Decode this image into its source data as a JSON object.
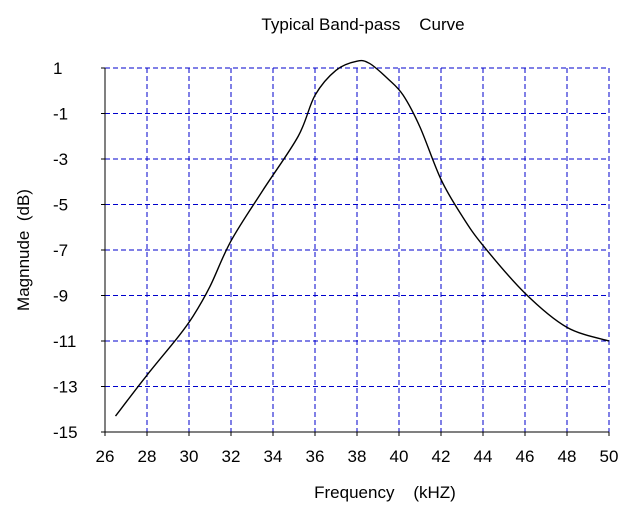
{
  "chart_data": {
    "type": "line",
    "title": "Typical Band-pass    Curve",
    "xlabel": "Frequency    (kHZ)",
    "ylabel": "Magnnude  (dB)",
    "xlim": [
      26,
      50
    ],
    "ylim": [
      -15,
      1
    ],
    "xticks": [
      26,
      28,
      30,
      32,
      34,
      36,
      38,
      40,
      42,
      44,
      46,
      48,
      50
    ],
    "yticks": [
      1,
      -1,
      -3,
      -5,
      -7,
      -9,
      -11,
      -13,
      -15
    ],
    "grid": true,
    "grid_color": "#0000cc",
    "line_color": "#000000",
    "series": [
      {
        "x": [
          26.5,
          28,
          29.5,
          30.2,
          31,
          32,
          33.5,
          35.2,
          36,
          37,
          38,
          38.6,
          39.5,
          40.2,
          41,
          42,
          43,
          44,
          46,
          48,
          50
        ],
        "y": [
          -14.3,
          -12.5,
          -10.8,
          -9.9,
          -8.6,
          -6.6,
          -4.4,
          -2.0,
          -0.2,
          0.9,
          1.3,
          1.2,
          0.5,
          -0.2,
          -1.6,
          -3.9,
          -5.5,
          -6.8,
          -8.9,
          -10.4,
          -11.0
        ]
      }
    ]
  }
}
